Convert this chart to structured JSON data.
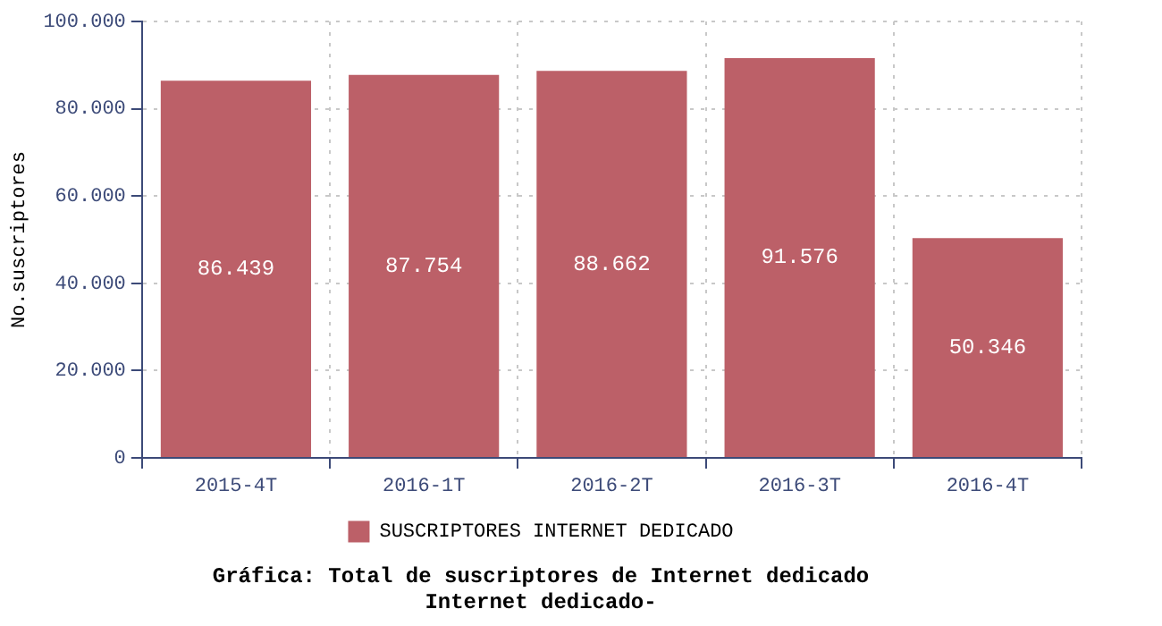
{
  "chart_data": {
    "type": "bar",
    "title": "Gráfica: Total de suscriptores de Internet dedicado",
    "subtitle": "Internet dedicado-",
    "ylabel": "No.suscriptores",
    "categories": [
      "2015-4T",
      "2016-1T",
      "2016-2T",
      "2016-3T",
      "2016-4T"
    ],
    "series": [
      {
        "name": "SUSCRIPTORES INTERNET DEDICADO",
        "color": "#bc6068",
        "values": [
          86439,
          87754,
          88662,
          91576,
          50346
        ],
        "value_labels": [
          "86.439",
          "87.754",
          "88.662",
          "91.576",
          "50.346"
        ]
      }
    ],
    "ylim": [
      0,
      100000
    ],
    "yticks": [
      {
        "value": 0,
        "label": "0"
      },
      {
        "value": 20000,
        "label": "20.000"
      },
      {
        "value": 40000,
        "label": "40.000"
      },
      {
        "value": 60000,
        "label": "60.000"
      },
      {
        "value": 80000,
        "label": "80.000"
      },
      {
        "value": 100000,
        "label": "100.000"
      }
    ],
    "grid": true,
    "legend": "bottom"
  }
}
